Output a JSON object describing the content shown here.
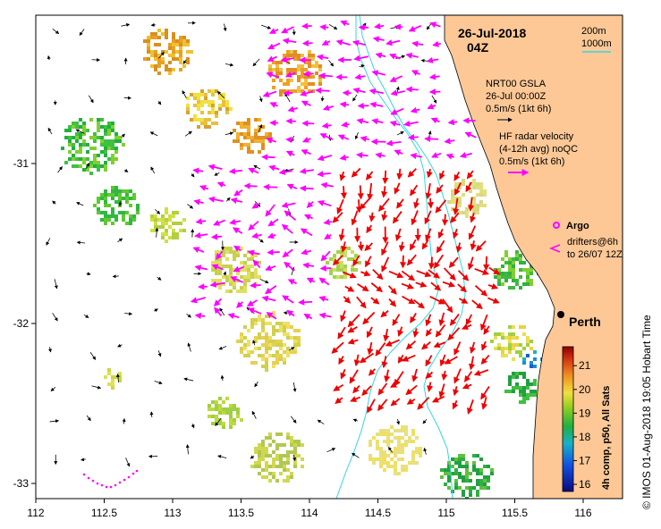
{
  "title": {
    "date": "26-Jul-2018",
    "time": "04Z"
  },
  "scale": {
    "iso200": "200m",
    "iso1000": "1000m"
  },
  "legend": {
    "gsla_name": "NRT00 GSLA",
    "gsla_date": "26-Jul 00:00Z",
    "gsla_scale": "0.5m/s (1kt 6h)",
    "radar_name": "HF radar velocity",
    "radar_avg": "(4-12h avg) noQC",
    "radar_scale": "0.5m/s (1kt 6h)",
    "argo": "Argo",
    "drifters": "drifters@6h",
    "drifters_to": "to 26/07 12Z"
  },
  "place": {
    "city": "Perth"
  },
  "colorbar": {
    "title": "4h comp, p50, All Sats",
    "ticks": [
      "21",
      "20",
      "19",
      "18",
      "17",
      "16"
    ],
    "range": [
      15.7,
      21.8
    ]
  },
  "axes": {
    "x_ticks": [
      "112",
      "112.5",
      "113",
      "113.5",
      "114",
      "114.5",
      "115",
      "115.5",
      "116"
    ],
    "y_ticks": [
      "-31",
      "-32",
      "-33"
    ]
  },
  "credit": "©  IMOS 01-Aug-2018 19:05 Hobart Time",
  "colors": {
    "land": "#fdc896",
    "radar_offshore": "#ff00ff",
    "radar_coastal": "#ee0000",
    "isobath": "#33d6e0",
    "gsla": "#000000"
  }
}
